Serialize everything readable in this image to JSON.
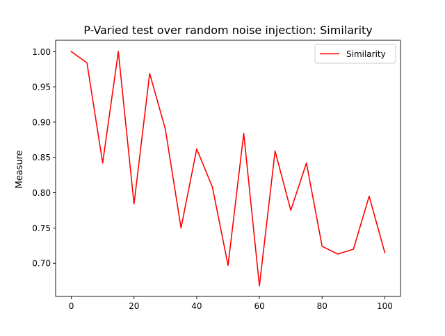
{
  "chart_data": {
    "type": "line",
    "title": "P-Varied test over random noise injection: Similarity",
    "xlabel": "",
    "ylabel": "Measure",
    "xlim": [
      -5,
      105
    ],
    "ylim": [
      0.653,
      1.016
    ],
    "xticks": [
      0,
      20,
      40,
      60,
      80,
      100
    ],
    "xtick_labels": [
      "0",
      "20",
      "40",
      "60",
      "80",
      "100"
    ],
    "yticks": [
      0.7,
      0.75,
      0.8,
      0.85,
      0.9,
      0.95,
      1.0
    ],
    "ytick_labels": [
      "0.70",
      "0.75",
      "0.80",
      "0.85",
      "0.90",
      "0.95",
      "1.00"
    ],
    "grid": false,
    "legend": "upper right",
    "series": [
      {
        "name": "Similarity",
        "color": "#ff0000",
        "x": [
          0,
          5,
          10,
          15,
          20,
          25,
          30,
          35,
          40,
          45,
          50,
          55,
          60,
          65,
          70,
          75,
          80,
          85,
          90,
          95,
          100
        ],
        "y": [
          1.0,
          0.984,
          0.842,
          1.0,
          0.784,
          0.969,
          0.89,
          0.75,
          0.862,
          0.808,
          0.697,
          0.884,
          0.668,
          0.859,
          0.775,
          0.842,
          0.724,
          0.713,
          0.72,
          0.795,
          0.715
        ]
      }
    ]
  }
}
